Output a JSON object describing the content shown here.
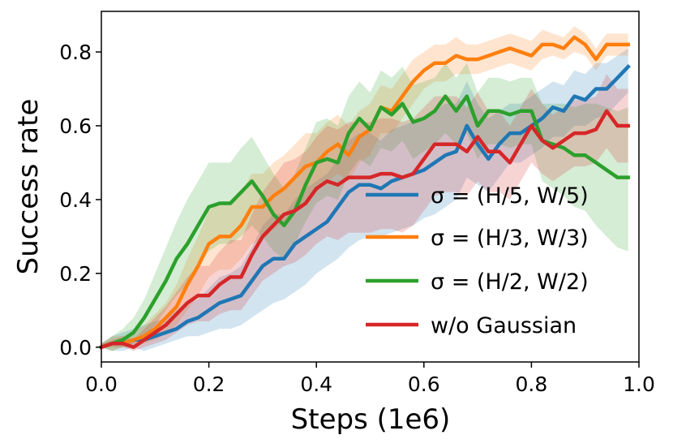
{
  "chart_data": {
    "type": "line",
    "title": "",
    "xlabel": "Steps (1e6)",
    "ylabel": "Success rate",
    "xlim": [
      0.0,
      1.0
    ],
    "ylim": [
      -0.04,
      0.91
    ],
    "xticks": [
      0.0,
      0.2,
      0.4,
      0.6,
      0.8,
      1.0
    ],
    "xtick_labels": [
      "0.0",
      "0.2",
      "0.4",
      "0.6",
      "0.8",
      "1.0"
    ],
    "yticks": [
      0.0,
      0.2,
      0.4,
      0.6,
      0.8
    ],
    "ytick_labels": [
      "0.0",
      "0.2",
      "0.4",
      "0.6",
      "0.8"
    ],
    "grid": false,
    "legend_position": "lower-right",
    "series": [
      {
        "name": "σ = (H/5, W/5)",
        "color": "#1f77b4",
        "x": [
          0,
          0.02,
          0.04,
          0.06,
          0.08,
          0.1,
          0.12,
          0.14,
          0.16,
          0.18,
          0.2,
          0.22,
          0.24,
          0.26,
          0.28,
          0.3,
          0.32,
          0.34,
          0.36,
          0.38,
          0.4,
          0.42,
          0.44,
          0.46,
          0.48,
          0.5,
          0.52,
          0.54,
          0.56,
          0.58,
          0.6,
          0.62,
          0.64,
          0.66,
          0.68,
          0.7,
          0.72,
          0.74,
          0.76,
          0.78,
          0.8,
          0.82,
          0.84,
          0.86,
          0.88,
          0.9,
          0.92,
          0.94,
          0.96,
          0.98
        ],
        "y": [
          0,
          0.01,
          0.01,
          0.02,
          0.02,
          0.03,
          0.04,
          0.05,
          0.07,
          0.08,
          0.1,
          0.12,
          0.13,
          0.14,
          0.18,
          0.22,
          0.24,
          0.24,
          0.28,
          0.3,
          0.32,
          0.34,
          0.38,
          0.42,
          0.44,
          0.44,
          0.43,
          0.45,
          0.46,
          0.47,
          0.48,
          0.5,
          0.52,
          0.53,
          0.6,
          0.55,
          0.51,
          0.55,
          0.58,
          0.58,
          0.6,
          0.62,
          0.65,
          0.64,
          0.68,
          0.67,
          0.7,
          0.7,
          0.73,
          0.76
        ],
        "lower": [
          0,
          -0.01,
          -0.01,
          0,
          -0.01,
          0,
          0.01,
          0.02,
          0.03,
          0.03,
          0.04,
          0.05,
          0.05,
          0.06,
          0.08,
          0.1,
          0.12,
          0.13,
          0.15,
          0.17,
          0.2,
          0.22,
          0.24,
          0.27,
          0.29,
          0.3,
          0.3,
          0.31,
          0.32,
          0.33,
          0.35,
          0.36,
          0.38,
          0.4,
          0.46,
          0.44,
          0.42,
          0.46,
          0.5,
          0.5,
          0.52,
          0.54,
          0.57,
          0.57,
          0.6,
          0.6,
          0.62,
          0.63,
          0.66,
          0.69
        ],
        "upper": [
          0.01,
          0.03,
          0.04,
          0.05,
          0.06,
          0.07,
          0.08,
          0.1,
          0.12,
          0.13,
          0.16,
          0.19,
          0.2,
          0.22,
          0.27,
          0.33,
          0.36,
          0.36,
          0.4,
          0.43,
          0.45,
          0.47,
          0.51,
          0.56,
          0.58,
          0.58,
          0.56,
          0.59,
          0.6,
          0.61,
          0.62,
          0.64,
          0.66,
          0.66,
          0.72,
          0.66,
          0.62,
          0.64,
          0.66,
          0.66,
          0.68,
          0.7,
          0.72,
          0.71,
          0.75,
          0.74,
          0.77,
          0.77,
          0.79,
          0.81
        ]
      },
      {
        "name": "σ = (H/3, W/3)",
        "color": "#ff7f0e",
        "x": [
          0,
          0.02,
          0.04,
          0.06,
          0.08,
          0.1,
          0.12,
          0.14,
          0.16,
          0.18,
          0.2,
          0.22,
          0.24,
          0.26,
          0.28,
          0.3,
          0.32,
          0.34,
          0.36,
          0.38,
          0.4,
          0.42,
          0.44,
          0.46,
          0.48,
          0.5,
          0.52,
          0.54,
          0.56,
          0.58,
          0.6,
          0.62,
          0.64,
          0.66,
          0.68,
          0.7,
          0.72,
          0.74,
          0.76,
          0.78,
          0.8,
          0.82,
          0.84,
          0.86,
          0.88,
          0.9,
          0.92,
          0.94,
          0.96,
          0.98
        ],
        "y": [
          0,
          0.01,
          0.01,
          0.02,
          0.03,
          0.05,
          0.08,
          0.11,
          0.17,
          0.22,
          0.28,
          0.3,
          0.3,
          0.33,
          0.38,
          0.38,
          0.41,
          0.43,
          0.46,
          0.49,
          0.5,
          0.53,
          0.55,
          0.52,
          0.57,
          0.59,
          0.65,
          0.64,
          0.68,
          0.72,
          0.75,
          0.77,
          0.77,
          0.79,
          0.78,
          0.78,
          0.79,
          0.8,
          0.81,
          0.8,
          0.79,
          0.82,
          0.82,
          0.81,
          0.84,
          0.82,
          0.78,
          0.82,
          0.82,
          0.82
        ],
        "lower": [
          0,
          -0.01,
          0,
          0,
          0.01,
          0.02,
          0.04,
          0.06,
          0.1,
          0.14,
          0.19,
          0.21,
          0.21,
          0.24,
          0.28,
          0.29,
          0.32,
          0.34,
          0.37,
          0.4,
          0.42,
          0.45,
          0.47,
          0.45,
          0.5,
          0.52,
          0.58,
          0.58,
          0.62,
          0.66,
          0.7,
          0.72,
          0.72,
          0.74,
          0.74,
          0.74,
          0.75,
          0.76,
          0.77,
          0.76,
          0.75,
          0.78,
          0.79,
          0.78,
          0.8,
          0.79,
          0.75,
          0.79,
          0.79,
          0.79
        ],
        "upper": [
          0.01,
          0.03,
          0.03,
          0.04,
          0.06,
          0.09,
          0.12,
          0.17,
          0.24,
          0.3,
          0.37,
          0.39,
          0.39,
          0.42,
          0.47,
          0.47,
          0.5,
          0.52,
          0.55,
          0.58,
          0.58,
          0.61,
          0.63,
          0.6,
          0.64,
          0.66,
          0.71,
          0.7,
          0.74,
          0.78,
          0.8,
          0.82,
          0.82,
          0.84,
          0.82,
          0.82,
          0.83,
          0.84,
          0.85,
          0.84,
          0.83,
          0.86,
          0.85,
          0.84,
          0.87,
          0.85,
          0.81,
          0.85,
          0.85,
          0.85
        ]
      },
      {
        "name": "σ = (H/2, W/2)",
        "color": "#2ca02c",
        "x": [
          0,
          0.02,
          0.04,
          0.06,
          0.08,
          0.1,
          0.12,
          0.14,
          0.16,
          0.18,
          0.2,
          0.22,
          0.24,
          0.26,
          0.28,
          0.3,
          0.32,
          0.34,
          0.36,
          0.38,
          0.4,
          0.42,
          0.44,
          0.46,
          0.48,
          0.5,
          0.52,
          0.54,
          0.56,
          0.58,
          0.6,
          0.62,
          0.64,
          0.66,
          0.68,
          0.7,
          0.72,
          0.74,
          0.76,
          0.78,
          0.8,
          0.82,
          0.84,
          0.86,
          0.88,
          0.9,
          0.92,
          0.94,
          0.96,
          0.98
        ],
        "y": [
          0,
          0.01,
          0.02,
          0.04,
          0.08,
          0.13,
          0.18,
          0.24,
          0.28,
          0.33,
          0.38,
          0.39,
          0.39,
          0.42,
          0.45,
          0.41,
          0.36,
          0.33,
          0.37,
          0.44,
          0.5,
          0.51,
          0.5,
          0.58,
          0.62,
          0.59,
          0.65,
          0.63,
          0.66,
          0.61,
          0.62,
          0.64,
          0.68,
          0.64,
          0.68,
          0.6,
          0.64,
          0.64,
          0.63,
          0.64,
          0.64,
          0.56,
          0.55,
          0.54,
          0.52,
          0.52,
          0.5,
          0.48,
          0.46,
          0.46
        ],
        "lower": [
          0,
          -0.01,
          0,
          0.01,
          0.03,
          0.06,
          0.1,
          0.14,
          0.17,
          0.22,
          0.26,
          0.28,
          0.28,
          0.3,
          0.33,
          0.3,
          0.26,
          0.24,
          0.28,
          0.34,
          0.39,
          0.41,
          0.4,
          0.47,
          0.51,
          0.49,
          0.54,
          0.53,
          0.56,
          0.51,
          0.53,
          0.55,
          0.58,
          0.55,
          0.58,
          0.51,
          0.55,
          0.55,
          0.54,
          0.55,
          0.55,
          0.45,
          0.43,
          0.41,
          0.38,
          0.37,
          0.33,
          0.3,
          0.27,
          0.26
        ],
        "upper": [
          0.01,
          0.03,
          0.05,
          0.08,
          0.13,
          0.2,
          0.27,
          0.34,
          0.4,
          0.45,
          0.5,
          0.5,
          0.5,
          0.54,
          0.57,
          0.52,
          0.47,
          0.43,
          0.47,
          0.54,
          0.61,
          0.62,
          0.6,
          0.68,
          0.72,
          0.69,
          0.75,
          0.73,
          0.76,
          0.71,
          0.72,
          0.73,
          0.77,
          0.73,
          0.77,
          0.69,
          0.73,
          0.73,
          0.72,
          0.73,
          0.73,
          0.66,
          0.66,
          0.66,
          0.65,
          0.66,
          0.66,
          0.65,
          0.64,
          0.65
        ]
      },
      {
        "name": "w/o Gaussian",
        "color": "#d62728",
        "x": [
          0,
          0.02,
          0.04,
          0.06,
          0.08,
          0.1,
          0.12,
          0.14,
          0.16,
          0.18,
          0.2,
          0.22,
          0.24,
          0.26,
          0.28,
          0.3,
          0.32,
          0.34,
          0.36,
          0.38,
          0.4,
          0.42,
          0.44,
          0.46,
          0.48,
          0.5,
          0.52,
          0.54,
          0.56,
          0.58,
          0.6,
          0.62,
          0.64,
          0.66,
          0.68,
          0.7,
          0.72,
          0.74,
          0.76,
          0.78,
          0.8,
          0.82,
          0.84,
          0.86,
          0.88,
          0.9,
          0.92,
          0.94,
          0.96,
          0.98
        ],
        "y": [
          0,
          0.01,
          0.01,
          0,
          0.02,
          0.04,
          0.06,
          0.09,
          0.12,
          0.14,
          0.14,
          0.17,
          0.19,
          0.19,
          0.25,
          0.3,
          0.33,
          0.36,
          0.37,
          0.39,
          0.43,
          0.45,
          0.44,
          0.46,
          0.46,
          0.46,
          0.47,
          0.47,
          0.46,
          0.47,
          0.51,
          0.55,
          0.55,
          0.55,
          0.53,
          0.57,
          0.53,
          0.53,
          0.5,
          0.55,
          0.6,
          0.56,
          0.54,
          0.56,
          0.58,
          0.58,
          0.59,
          0.64,
          0.6,
          0.6
        ],
        "lower": [
          0,
          0,
          0,
          -0.01,
          0,
          0.01,
          0.02,
          0.04,
          0.06,
          0.07,
          0.07,
          0.09,
          0.1,
          0.1,
          0.14,
          0.18,
          0.2,
          0.22,
          0.23,
          0.25,
          0.28,
          0.3,
          0.29,
          0.31,
          0.31,
          0.31,
          0.32,
          0.32,
          0.31,
          0.33,
          0.37,
          0.41,
          0.42,
          0.42,
          0.41,
          0.45,
          0.42,
          0.42,
          0.4,
          0.45,
          0.5,
          0.47,
          0.45,
          0.47,
          0.49,
          0.49,
          0.5,
          0.54,
          0.5,
          0.5
        ],
        "upper": [
          0.01,
          0.02,
          0.03,
          0.02,
          0.05,
          0.08,
          0.11,
          0.15,
          0.19,
          0.22,
          0.22,
          0.26,
          0.29,
          0.29,
          0.36,
          0.42,
          0.46,
          0.5,
          0.51,
          0.53,
          0.57,
          0.6,
          0.59,
          0.61,
          0.61,
          0.61,
          0.62,
          0.62,
          0.61,
          0.62,
          0.65,
          0.68,
          0.68,
          0.68,
          0.65,
          0.69,
          0.64,
          0.64,
          0.6,
          0.65,
          0.7,
          0.66,
          0.63,
          0.65,
          0.67,
          0.67,
          0.68,
          0.74,
          0.7,
          0.7
        ]
      }
    ]
  }
}
